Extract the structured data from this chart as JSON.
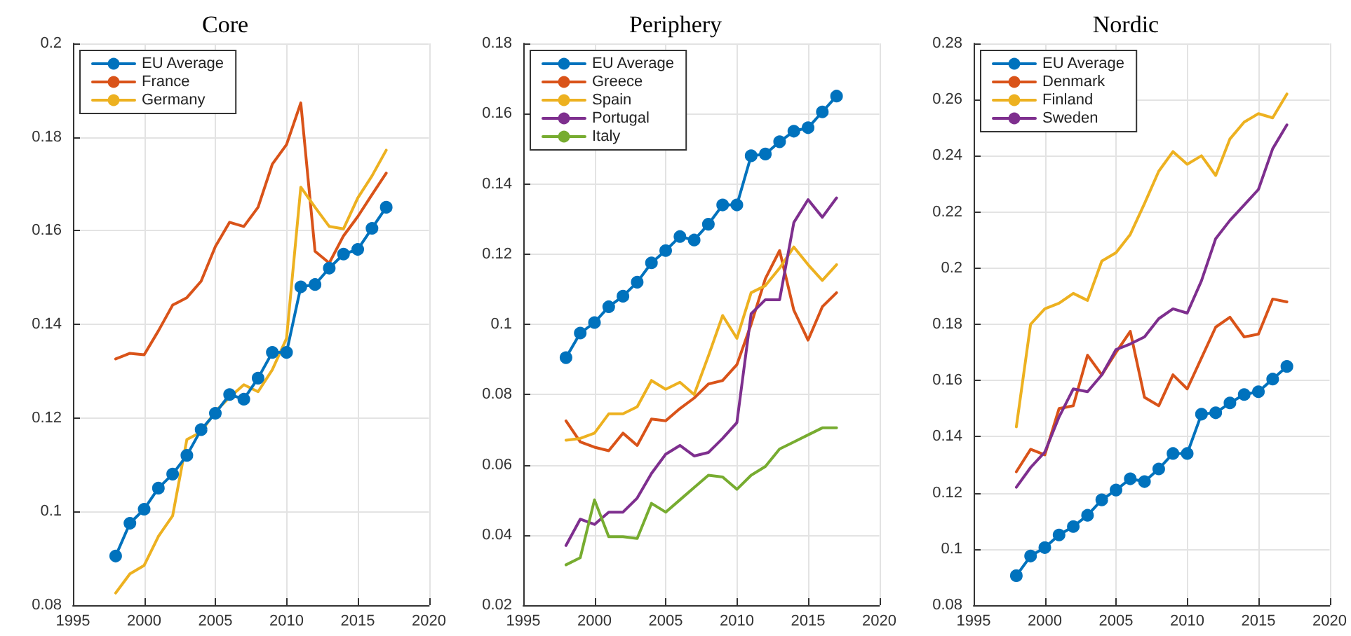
{
  "chart_data": [
    {
      "type": "line",
      "title": "Core",
      "x": [
        1998,
        1999,
        2000,
        2001,
        2002,
        2003,
        2004,
        2005,
        2006,
        2007,
        2008,
        2009,
        2010,
        2011,
        2012,
        2013,
        2014,
        2015,
        2016,
        2017
      ],
      "xlim": [
        1995,
        2020
      ],
      "xticks": [
        1995,
        2000,
        2005,
        2010,
        2015,
        2020
      ],
      "ylim": [
        0.08,
        0.2
      ],
      "yticks": [
        0.08,
        0.1,
        0.12,
        0.14,
        0.16,
        0.18,
        0.2
      ],
      "grid": true,
      "legend": "top left",
      "series": [
        {
          "name": "EU Average",
          "color": "#0072bd",
          "marker": "circle",
          "values": [
            0.0905,
            0.0975,
            0.1005,
            0.105,
            0.108,
            0.112,
            0.1175,
            0.121,
            0.125,
            0.124,
            0.1285,
            0.134,
            0.134,
            0.148,
            0.1485,
            0.152,
            0.155,
            0.156,
            0.1605,
            0.165
          ]
        },
        {
          "name": "France",
          "color": "#d95319",
          "values": [
            0.1326,
            0.1338,
            0.1335,
            0.1386,
            0.1441,
            0.1457,
            0.1492,
            0.1566,
            0.1618,
            0.1609,
            0.165,
            0.1742,
            0.1784,
            0.1873,
            0.1556,
            0.1531,
            0.1589,
            0.163,
            0.1677,
            0.1723
          ]
        },
        {
          "name": "Germany",
          "color": "#edb120",
          "values": [
            0.0826,
            0.0867,
            0.0885,
            0.0947,
            0.0991,
            0.1154,
            0.117,
            0.1214,
            0.1244,
            0.1271,
            0.1256,
            0.1303,
            0.137,
            0.1693,
            0.165,
            0.1609,
            0.1604,
            0.167,
            0.1717,
            0.1772
          ]
        }
      ]
    },
    {
      "type": "line",
      "title": "Periphery",
      "x": [
        1998,
        1999,
        2000,
        2001,
        2002,
        2003,
        2004,
        2005,
        2006,
        2007,
        2008,
        2009,
        2010,
        2011,
        2012,
        2013,
        2014,
        2015,
        2016,
        2017
      ],
      "xlim": [
        1995,
        2020
      ],
      "xticks": [
        1995,
        2000,
        2005,
        2010,
        2015,
        2020
      ],
      "ylim": [
        0.02,
        0.18
      ],
      "yticks": [
        0.02,
        0.04,
        0.06,
        0.08,
        0.1,
        0.12,
        0.14,
        0.16,
        0.18
      ],
      "grid": true,
      "legend": "top left",
      "series": [
        {
          "name": "EU Average",
          "color": "#0072bd",
          "marker": "circle",
          "values": [
            0.0905,
            0.0975,
            0.1005,
            0.105,
            0.108,
            0.112,
            0.1175,
            0.121,
            0.125,
            0.124,
            0.1285,
            0.134,
            0.134,
            0.148,
            0.1485,
            0.152,
            0.155,
            0.156,
            0.1605,
            0.165
          ]
        },
        {
          "name": "Greece",
          "color": "#d95319",
          "values": [
            0.0725,
            0.0665,
            0.065,
            0.064,
            0.069,
            0.0655,
            0.073,
            0.0725,
            0.076,
            0.079,
            0.083,
            0.084,
            0.0885,
            0.1,
            0.113,
            0.121,
            0.104,
            0.0955,
            0.105,
            0.109
          ]
        },
        {
          "name": "Spain",
          "color": "#edb120",
          "values": [
            0.067,
            0.0675,
            0.069,
            0.0745,
            0.0745,
            0.0765,
            0.084,
            0.0815,
            0.0835,
            0.08,
            0.091,
            0.1025,
            0.096,
            0.109,
            0.111,
            0.116,
            0.122,
            0.117,
            0.1125,
            0.117
          ]
        },
        {
          "name": "Portugal",
          "color": "#7e2f8e",
          "values": [
            0.037,
            0.0445,
            0.043,
            0.0465,
            0.0465,
            0.0505,
            0.0575,
            0.063,
            0.0655,
            0.0625,
            0.0635,
            0.0675,
            0.072,
            0.103,
            0.107,
            0.107,
            0.129,
            0.1355,
            0.1305,
            0.136
          ]
        },
        {
          "name": "Italy",
          "color": "#77ac30",
          "values": [
            0.0315,
            0.0335,
            0.05,
            0.0395,
            0.0395,
            0.039,
            0.049,
            0.0465,
            0.05,
            0.0535,
            0.057,
            0.0565,
            0.053,
            0.057,
            0.0595,
            0.0645,
            0.0665,
            0.0685,
            0.0705,
            0.0705
          ]
        }
      ]
    },
    {
      "type": "line",
      "title": "Nordic",
      "x": [
        1998,
        1999,
        2000,
        2001,
        2002,
        2003,
        2004,
        2005,
        2006,
        2007,
        2008,
        2009,
        2010,
        2011,
        2012,
        2013,
        2014,
        2015,
        2016,
        2017
      ],
      "xlim": [
        1995,
        2020
      ],
      "xticks": [
        1995,
        2000,
        2005,
        2010,
        2015,
        2020
      ],
      "ylim": [
        0.08,
        0.28
      ],
      "yticks": [
        0.08,
        0.1,
        0.12,
        0.14,
        0.16,
        0.18,
        0.2,
        0.22,
        0.24,
        0.26,
        0.28
      ],
      "grid": true,
      "legend": "top left",
      "series": [
        {
          "name": "EU Average",
          "color": "#0072bd",
          "marker": "circle",
          "values": [
            0.0905,
            0.0975,
            0.1005,
            0.105,
            0.108,
            0.112,
            0.1175,
            0.121,
            0.125,
            0.124,
            0.1285,
            0.134,
            0.134,
            0.148,
            0.1485,
            0.152,
            0.155,
            0.156,
            0.1605,
            0.165
          ]
        },
        {
          "name": "Denmark",
          "color": "#d95319",
          "values": [
            0.1275,
            0.1355,
            0.1335,
            0.15,
            0.151,
            0.169,
            0.162,
            0.17,
            0.1775,
            0.154,
            0.151,
            0.162,
            0.157,
            0.168,
            0.179,
            0.1825,
            0.1755,
            0.1765,
            0.189,
            0.188
          ]
        },
        {
          "name": "Finland",
          "color": "#edb120",
          "values": [
            0.1435,
            0.18,
            0.1855,
            0.1875,
            0.191,
            0.1885,
            0.2025,
            0.2055,
            0.212,
            0.223,
            0.2345,
            0.2415,
            0.237,
            0.24,
            0.233,
            0.246,
            0.252,
            0.255,
            0.2535,
            0.262
          ]
        },
        {
          "name": "Sweden",
          "color": "#7e2f8e",
          "values": [
            0.122,
            0.129,
            0.1345,
            0.147,
            0.157,
            0.156,
            0.162,
            0.171,
            0.173,
            0.1755,
            0.182,
            0.1855,
            0.184,
            0.1955,
            0.2105,
            0.217,
            0.2225,
            0.228,
            0.2425,
            0.251
          ]
        }
      ]
    }
  ]
}
